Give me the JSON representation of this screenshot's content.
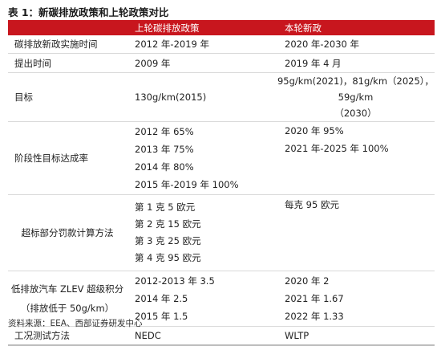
{
  "title": "表 1：新碳排放政策和上轮政策对比",
  "header": {
    "col1": "",
    "col2": "上轮碳排放政策",
    "col3": "本轮新政"
  },
  "rows": {
    "period": {
      "label": "碳排放新政实施时间",
      "prev": "2012 年-2019 年",
      "new": "2020 年-2030 年"
    },
    "proposed": {
      "label": "提出时间",
      "prev": "2009 年",
      "new": "2019 年 4 月"
    },
    "target": {
      "label": "目标",
      "prev": "130g/km(2015)",
      "new_line1": "95g/km(2021)，81g/km（2025），59g/km",
      "new_line2": "（2030）"
    },
    "stage": {
      "label": "阶段性目标达成率",
      "prev": [
        "2012 年  65%",
        "2013 年  75%",
        "2014 年  80%",
        "2015 年-2019 年  100%"
      ],
      "new": [
        "2020 年  95%",
        "2021 年-2025 年  100%"
      ]
    },
    "penalty": {
      "label": "超标部分罚款计算方法",
      "prev": [
        "第 1 克  5 欧元",
        "第 2 克  15 欧元",
        "第 3 克  25 欧元",
        "第 4 克  95 欧元"
      ],
      "new": "每克  95 欧元"
    },
    "zlev": {
      "label_line1": "低排放汽车 ZLEV 超级积分",
      "label_line2": "（排放低于 50g/km）",
      "prev": [
        "2012-2013 年  3.5",
        "2014 年  2.5",
        "2015 年  1.5"
      ],
      "new": [
        "2020 年  2",
        "2021 年  1.67",
        "2022 年  1.33"
      ]
    },
    "test": {
      "label": "工况测试方法",
      "prev": "NEDC",
      "new": "WLTP"
    }
  },
  "source": "资料来源：EEA、西部证券研发中心",
  "colors": {
    "header_bg": "#c8161e",
    "header_text": "#ffffff",
    "row_border": "#d9d9d9"
  }
}
